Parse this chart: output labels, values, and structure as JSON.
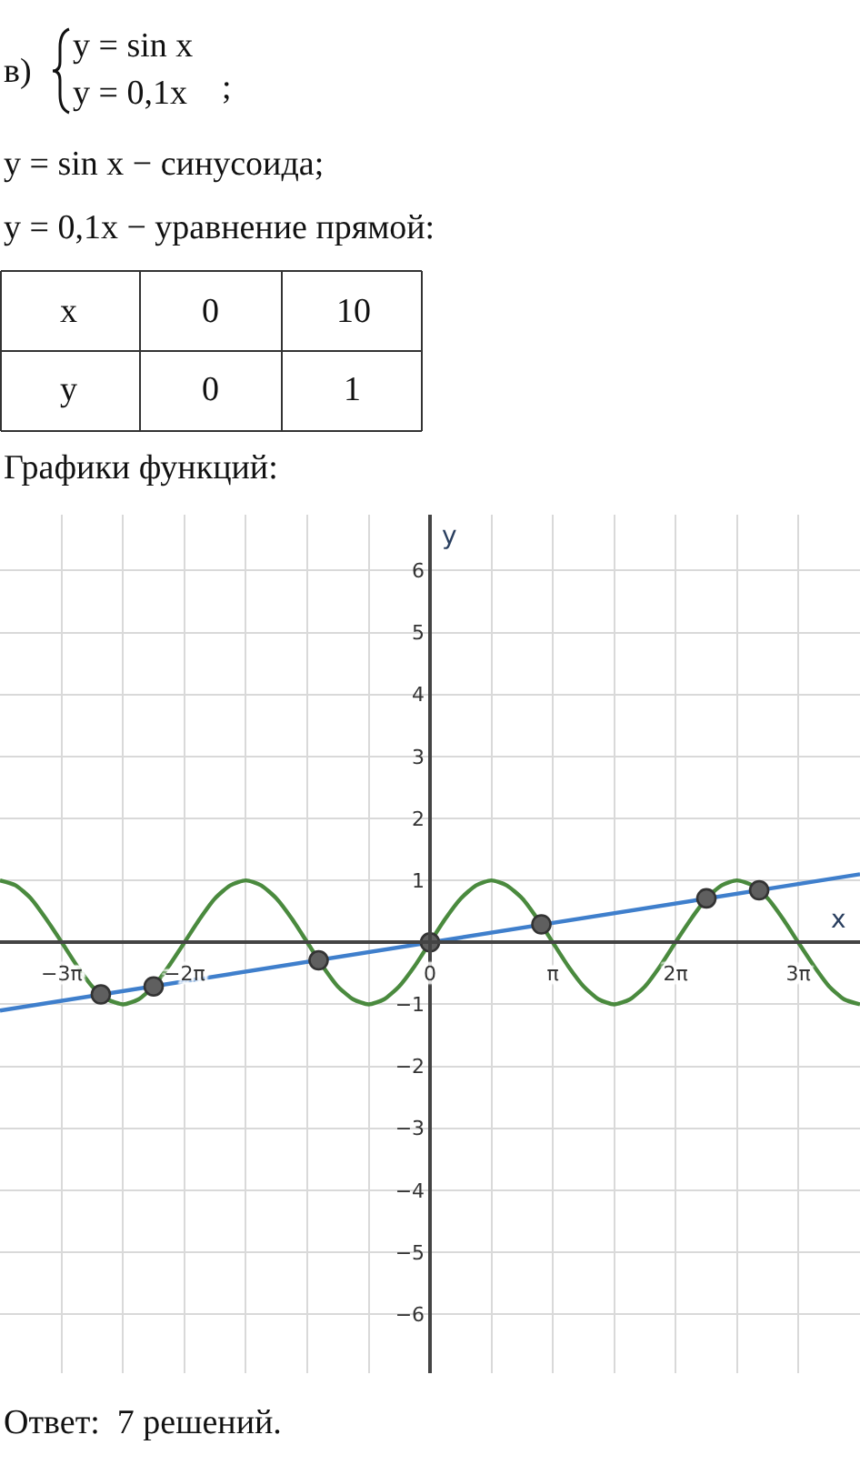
{
  "chart_data": {
    "type": "line",
    "xlabel": "x",
    "ylabel": "y",
    "annotations": [
      "в)",
      "y = sin x",
      "y = 0,1x",
      ";",
      "y = sin x − синусоида;",
      "y = 0,1x − уравнение прямой:",
      "x",
      "0",
      "10",
      "y",
      "0",
      "1",
      "Графики функций:",
      "Ответ:  7 решений."
    ],
    "series": [
      {
        "color": "#4a8a3e",
        "x": [
          -11.0,
          -10.6,
          -10.21,
          -9.82,
          -9.42,
          -9.03,
          -8.64,
          -8.25,
          -7.85,
          -7.46,
          -7.07,
          -6.68,
          -6.28,
          -5.89,
          -5.5,
          -5.11,
          -4.71,
          -4.32,
          -3.93,
          -3.53,
          -3.14,
          -2.75,
          -2.36,
          -1.96,
          -1.57,
          -1.18,
          -0.79,
          -0.39,
          0,
          0.39,
          0.79,
          1.18,
          1.57,
          1.96,
          2.36,
          2.75,
          3.14,
          3.53,
          3.93,
          4.32,
          4.71,
          5.11,
          5.5,
          5.89,
          6.28,
          6.68,
          7.07,
          7.46,
          7.85,
          8.25,
          8.64,
          9.03,
          9.42,
          9.82,
          10.21,
          10.6,
          11.0
        ],
        "values": [
          1,
          0.92,
          0.71,
          0.38,
          0,
          -0.38,
          -0.71,
          -0.92,
          -1,
          -0.92,
          -0.71,
          -0.38,
          0,
          0.38,
          0.71,
          0.92,
          1,
          0.92,
          0.71,
          0.38,
          0,
          -0.38,
          -0.71,
          -0.92,
          -1,
          -0.92,
          -0.71,
          -0.38,
          0,
          0.38,
          0.71,
          0.92,
          1,
          0.92,
          0.71,
          0.38,
          0,
          -0.38,
          -0.71,
          -0.92,
          -1,
          -0.92,
          -0.71,
          -0.38,
          0,
          0.38,
          0.71,
          0.92,
          1,
          0.92,
          0.71,
          0.38,
          0,
          -0.38,
          -0.71,
          -0.92,
          -1
        ]
      },
      {
        "color": "#3f7fcc",
        "x": [
          -11.0,
          11.0
        ],
        "values": [
          -1.1,
          1.1
        ]
      },
      {
        "type": "scatter",
        "marker": "circle",
        "color": "#5f5f5f",
        "x": [
          -8.42,
          -7.07,
          -2.85,
          0,
          2.85,
          7.07,
          8.42
        ],
        "values": [
          -0.84,
          -0.71,
          -0.29,
          0,
          0.29,
          0.71,
          0.84
        ]
      }
    ],
    "line_style": "solid",
    "grid": true,
    "xlim": [
      -11.0,
      11.0
    ],
    "ylim": [
      -6.95,
      6.9
    ],
    "xticks": [
      {
        "value": -10.99,
        "label": null
      },
      {
        "value": -9.42,
        "label": "−3π"
      },
      {
        "value": -7.85,
        "label": null
      },
      {
        "value": -6.28,
        "label": "−2π"
      },
      {
        "value": -4.71,
        "label": null
      },
      {
        "value": -3.14,
        "label": null
      },
      {
        "value": -1.57,
        "label": null
      },
      0,
      {
        "value": 1.57,
        "label": null
      },
      {
        "value": 3.14,
        "label": "π"
      },
      {
        "value": 4.71,
        "label": null
      },
      {
        "value": 6.28,
        "label": "2π"
      },
      {
        "value": 7.85,
        "label": null
      },
      {
        "value": 9.42,
        "label": "3π"
      },
      {
        "value": 10.99,
        "label": null
      }
    ],
    "yticks": [
      {
        "value": -6,
        "label": "−6"
      },
      {
        "value": -5,
        "label": "−5"
      },
      {
        "value": -4,
        "label": "−4"
      },
      {
        "value": -3,
        "label": "−3"
      },
      {
        "value": -2,
        "label": "−2"
      },
      {
        "value": -1,
        "label": "−1"
      },
      1,
      2,
      3,
      4,
      5,
      6
    ]
  }
}
